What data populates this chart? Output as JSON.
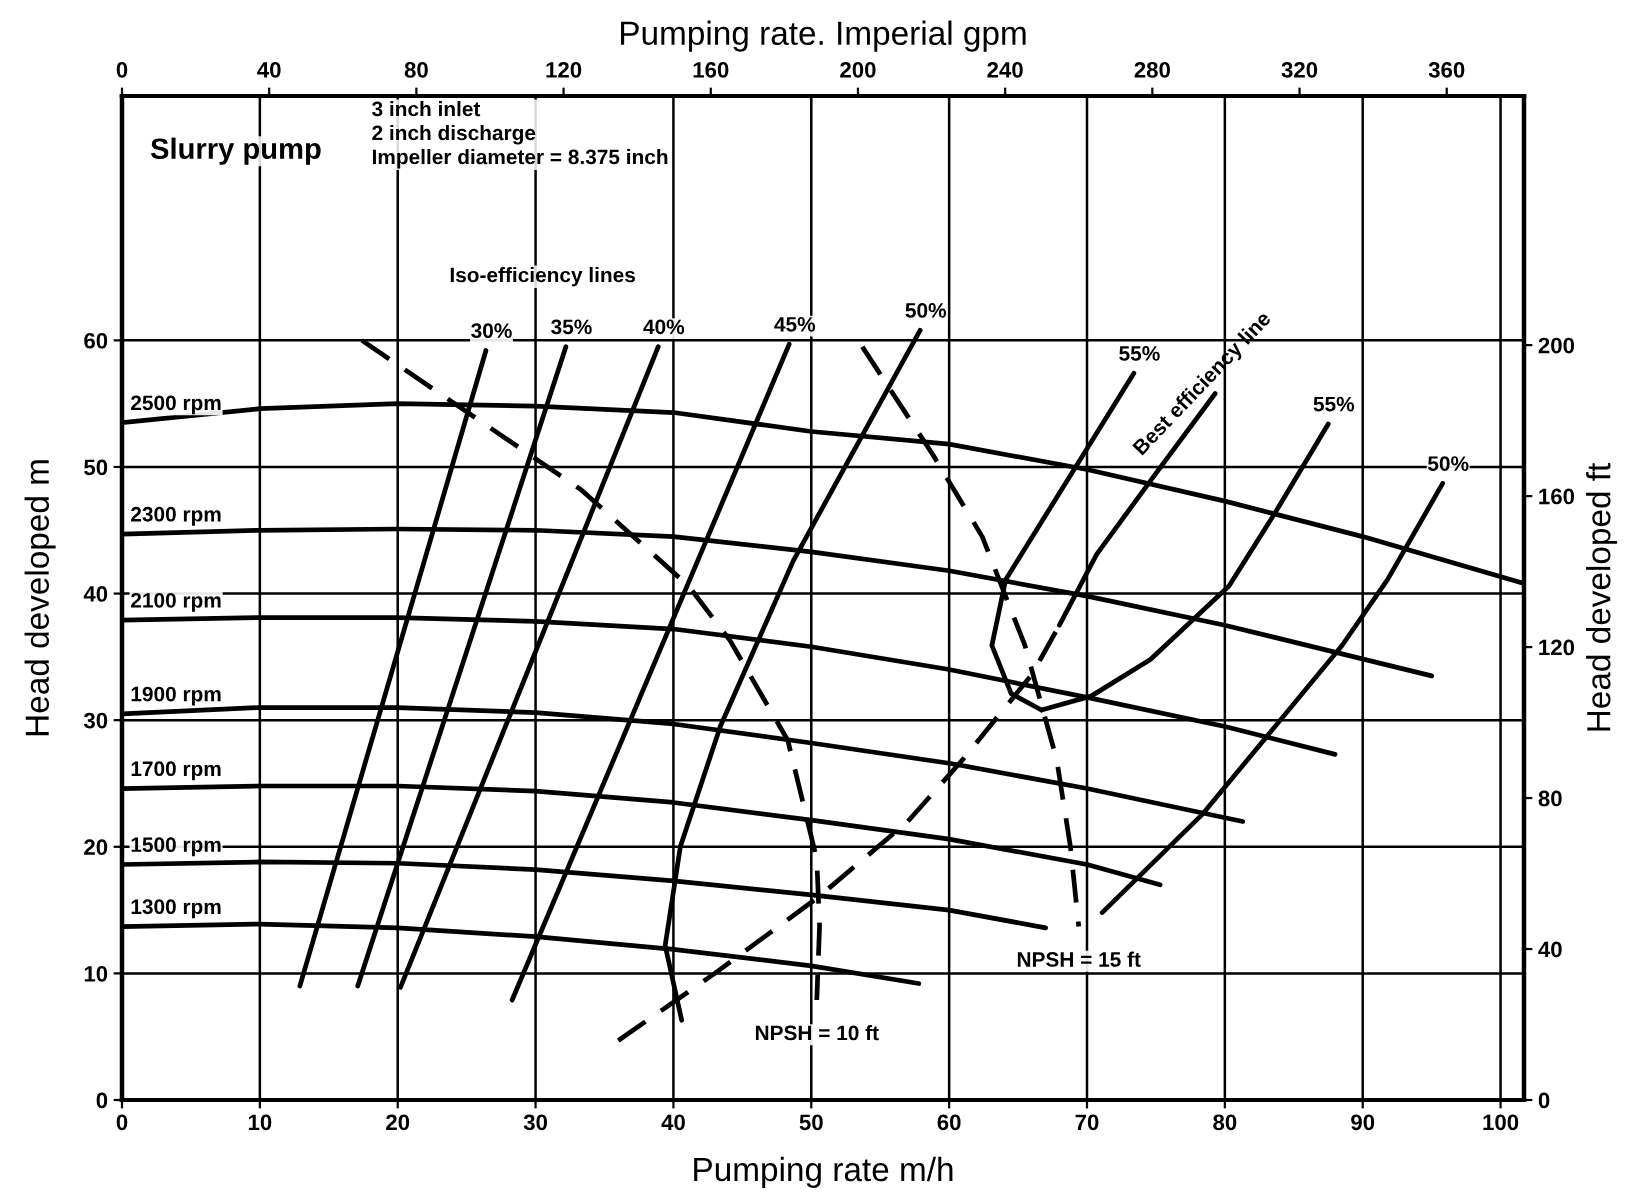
{
  "chart_data": {
    "type": "line",
    "xlabel": "Pumping rate m/h",
    "x2label": "Pumping rate. Imperial gpm",
    "ylabel": "Head developed m",
    "y2label": "Head developed ft",
    "xlim": [
      0,
      101.7
    ],
    "xticks": [
      0,
      10,
      20,
      30,
      40,
      50,
      60,
      70,
      80,
      90,
      100
    ],
    "ylim": [
      0,
      79.3
    ],
    "yticks": [
      0,
      10,
      20,
      30,
      40,
      50,
      60
    ],
    "x2lim": [
      0,
      381
    ],
    "x2ticks": [
      0,
      40,
      80,
      120,
      160,
      200,
      240,
      280,
      320,
      360
    ],
    "y2lim": [
      0,
      266
    ],
    "y2ticks": [
      0,
      40,
      80,
      120,
      160,
      200
    ],
    "grid": true,
    "series": [
      {
        "name": "2500 rpm",
        "color": "#000000",
        "x": [
          0,
          10,
          20,
          30,
          40,
          50,
          60,
          70,
          80,
          90,
          101.7
        ],
        "values": [
          53.5,
          54.6,
          55,
          54.8,
          54.3,
          52.8,
          51.8,
          49.8,
          47.3,
          44.5,
          40.8
        ]
      },
      {
        "name": "2300 rpm",
        "color": "#000000",
        "x": [
          0,
          10,
          20,
          30,
          40,
          50,
          60,
          70,
          80,
          95
        ],
        "values": [
          44.7,
          45,
          45.1,
          45,
          44.5,
          43.3,
          41.8,
          39.8,
          37.5,
          33.5
        ]
      },
      {
        "name": "2100 rpm",
        "color": "#000000",
        "x": [
          0,
          10,
          20,
          30,
          40,
          50,
          60,
          70,
          80,
          88
        ],
        "values": [
          37.9,
          38.1,
          38.1,
          37.8,
          37.2,
          35.8,
          34,
          31.8,
          29.5,
          27.3
        ]
      },
      {
        "name": "1900 rpm",
        "color": "#000000",
        "x": [
          0,
          10,
          20,
          30,
          40,
          50,
          60,
          70,
          81.3
        ],
        "values": [
          30.5,
          31,
          31,
          30.6,
          29.7,
          28.2,
          26.6,
          24.6,
          22
        ]
      },
      {
        "name": "1700 rpm",
        "color": "#000000",
        "x": [
          0,
          10,
          20,
          30,
          40,
          50,
          60,
          70,
          75.3
        ],
        "values": [
          24.6,
          24.8,
          24.8,
          24.4,
          23.5,
          22.1,
          20.6,
          18.6,
          17
        ]
      },
      {
        "name": "1500 rpm",
        "color": "#000000",
        "x": [
          0,
          10,
          20,
          30,
          40,
          50,
          60,
          67
        ],
        "values": [
          18.6,
          18.8,
          18.7,
          18.2,
          17.3,
          16.2,
          15,
          13.6
        ]
      },
      {
        "name": "1300 rpm",
        "color": "#000000",
        "x": [
          0,
          10,
          20,
          30,
          40,
          50,
          57.8
        ],
        "values": [
          13.7,
          13.9,
          13.6,
          12.9,
          11.9,
          10.6,
          9.2
        ]
      },
      {
        "name": "30%",
        "color": "#000000",
        "x": [
          12.9,
          26.4
        ],
        "values": [
          9.0,
          59.2
        ]
      },
      {
        "name": "35%",
        "color": "#000000",
        "x": [
          17.1,
          32.2
        ],
        "values": [
          9.0,
          59.5
        ]
      },
      {
        "name": "40%",
        "color": "#000000",
        "x": [
          20.2,
          38.9
        ],
        "values": [
          8.9,
          59.5
        ]
      },
      {
        "name": "45%",
        "color": "#000000",
        "x": [
          28.3,
          48.4
        ],
        "values": [
          7.9,
          59.7
        ]
      },
      {
        "name": "50%",
        "color": "#000000",
        "x": [
          40.6,
          39.4,
          40.5,
          43.4,
          48.7,
          57.9
        ],
        "values": [
          6.3,
          12.2,
          20,
          29.5,
          42.6,
          60.8
        ]
      },
      {
        "name": "55%",
        "color": "#000000",
        "x": [
          66.7,
          64.5,
          63.1,
          64.1,
          73.4
        ],
        "values": [
          30.8,
          32.1,
          35.9,
          41.1,
          57.4
        ]
      },
      {
        "name": "55%",
        "color": "#000000",
        "x": [
          66.7,
          70.3,
          74.6,
          80.3,
          83.6,
          87.5
        ],
        "values": [
          30.8,
          31.9,
          34.8,
          40.6,
          46.3,
          53.4
        ]
      },
      {
        "name": "50%",
        "color": "#000000",
        "x": [
          71.1,
          78.4,
          88.5,
          91.8,
          95.8
        ],
        "values": [
          14.8,
          22.6,
          35.9,
          41.1,
          48.7
        ]
      },
      {
        "name": "NPSH = 10 ft",
        "color": "#000000",
        "line_style": "dashed",
        "x": [
          17.4,
          33.3,
          41.1,
          44.1,
          48.3,
          50.4,
          50.6,
          50.4
        ],
        "values": [
          60,
          48.2,
          40.6,
          36.3,
          28.4,
          19,
          13.7,
          7.9
        ]
      },
      {
        "name": "NPSH = 15 ft",
        "color": "#000000",
        "line_style": "dashed",
        "x": [
          53.7,
          58.8,
          62.4,
          65.5,
          67.8,
          68.8,
          69.4
        ],
        "values": [
          59.5,
          51,
          44.5,
          35.9,
          26.9,
          20,
          13.7
        ]
      },
      {
        "color": "#000000",
        "line_style": "dashed",
        "x": [
          36,
          43,
          50.6,
          57,
          61,
          66,
          68
        ],
        "values": [
          4.7,
          10,
          16.1,
          22,
          26.9,
          33.6,
          37.5
        ]
      },
      {
        "name": "Best efficiency line",
        "color": "#000000",
        "x": [
          68,
          70.7,
          75,
          79.3
        ],
        "values": [
          37.5,
          43.1,
          49.5,
          55.8
        ]
      }
    ],
    "annotations": [
      "Slurry pump",
      "3 inch inlet\n2 inch discharge\nImpeller diameter = 8.375 inch",
      "Iso-efficiency lines"
    ]
  }
}
